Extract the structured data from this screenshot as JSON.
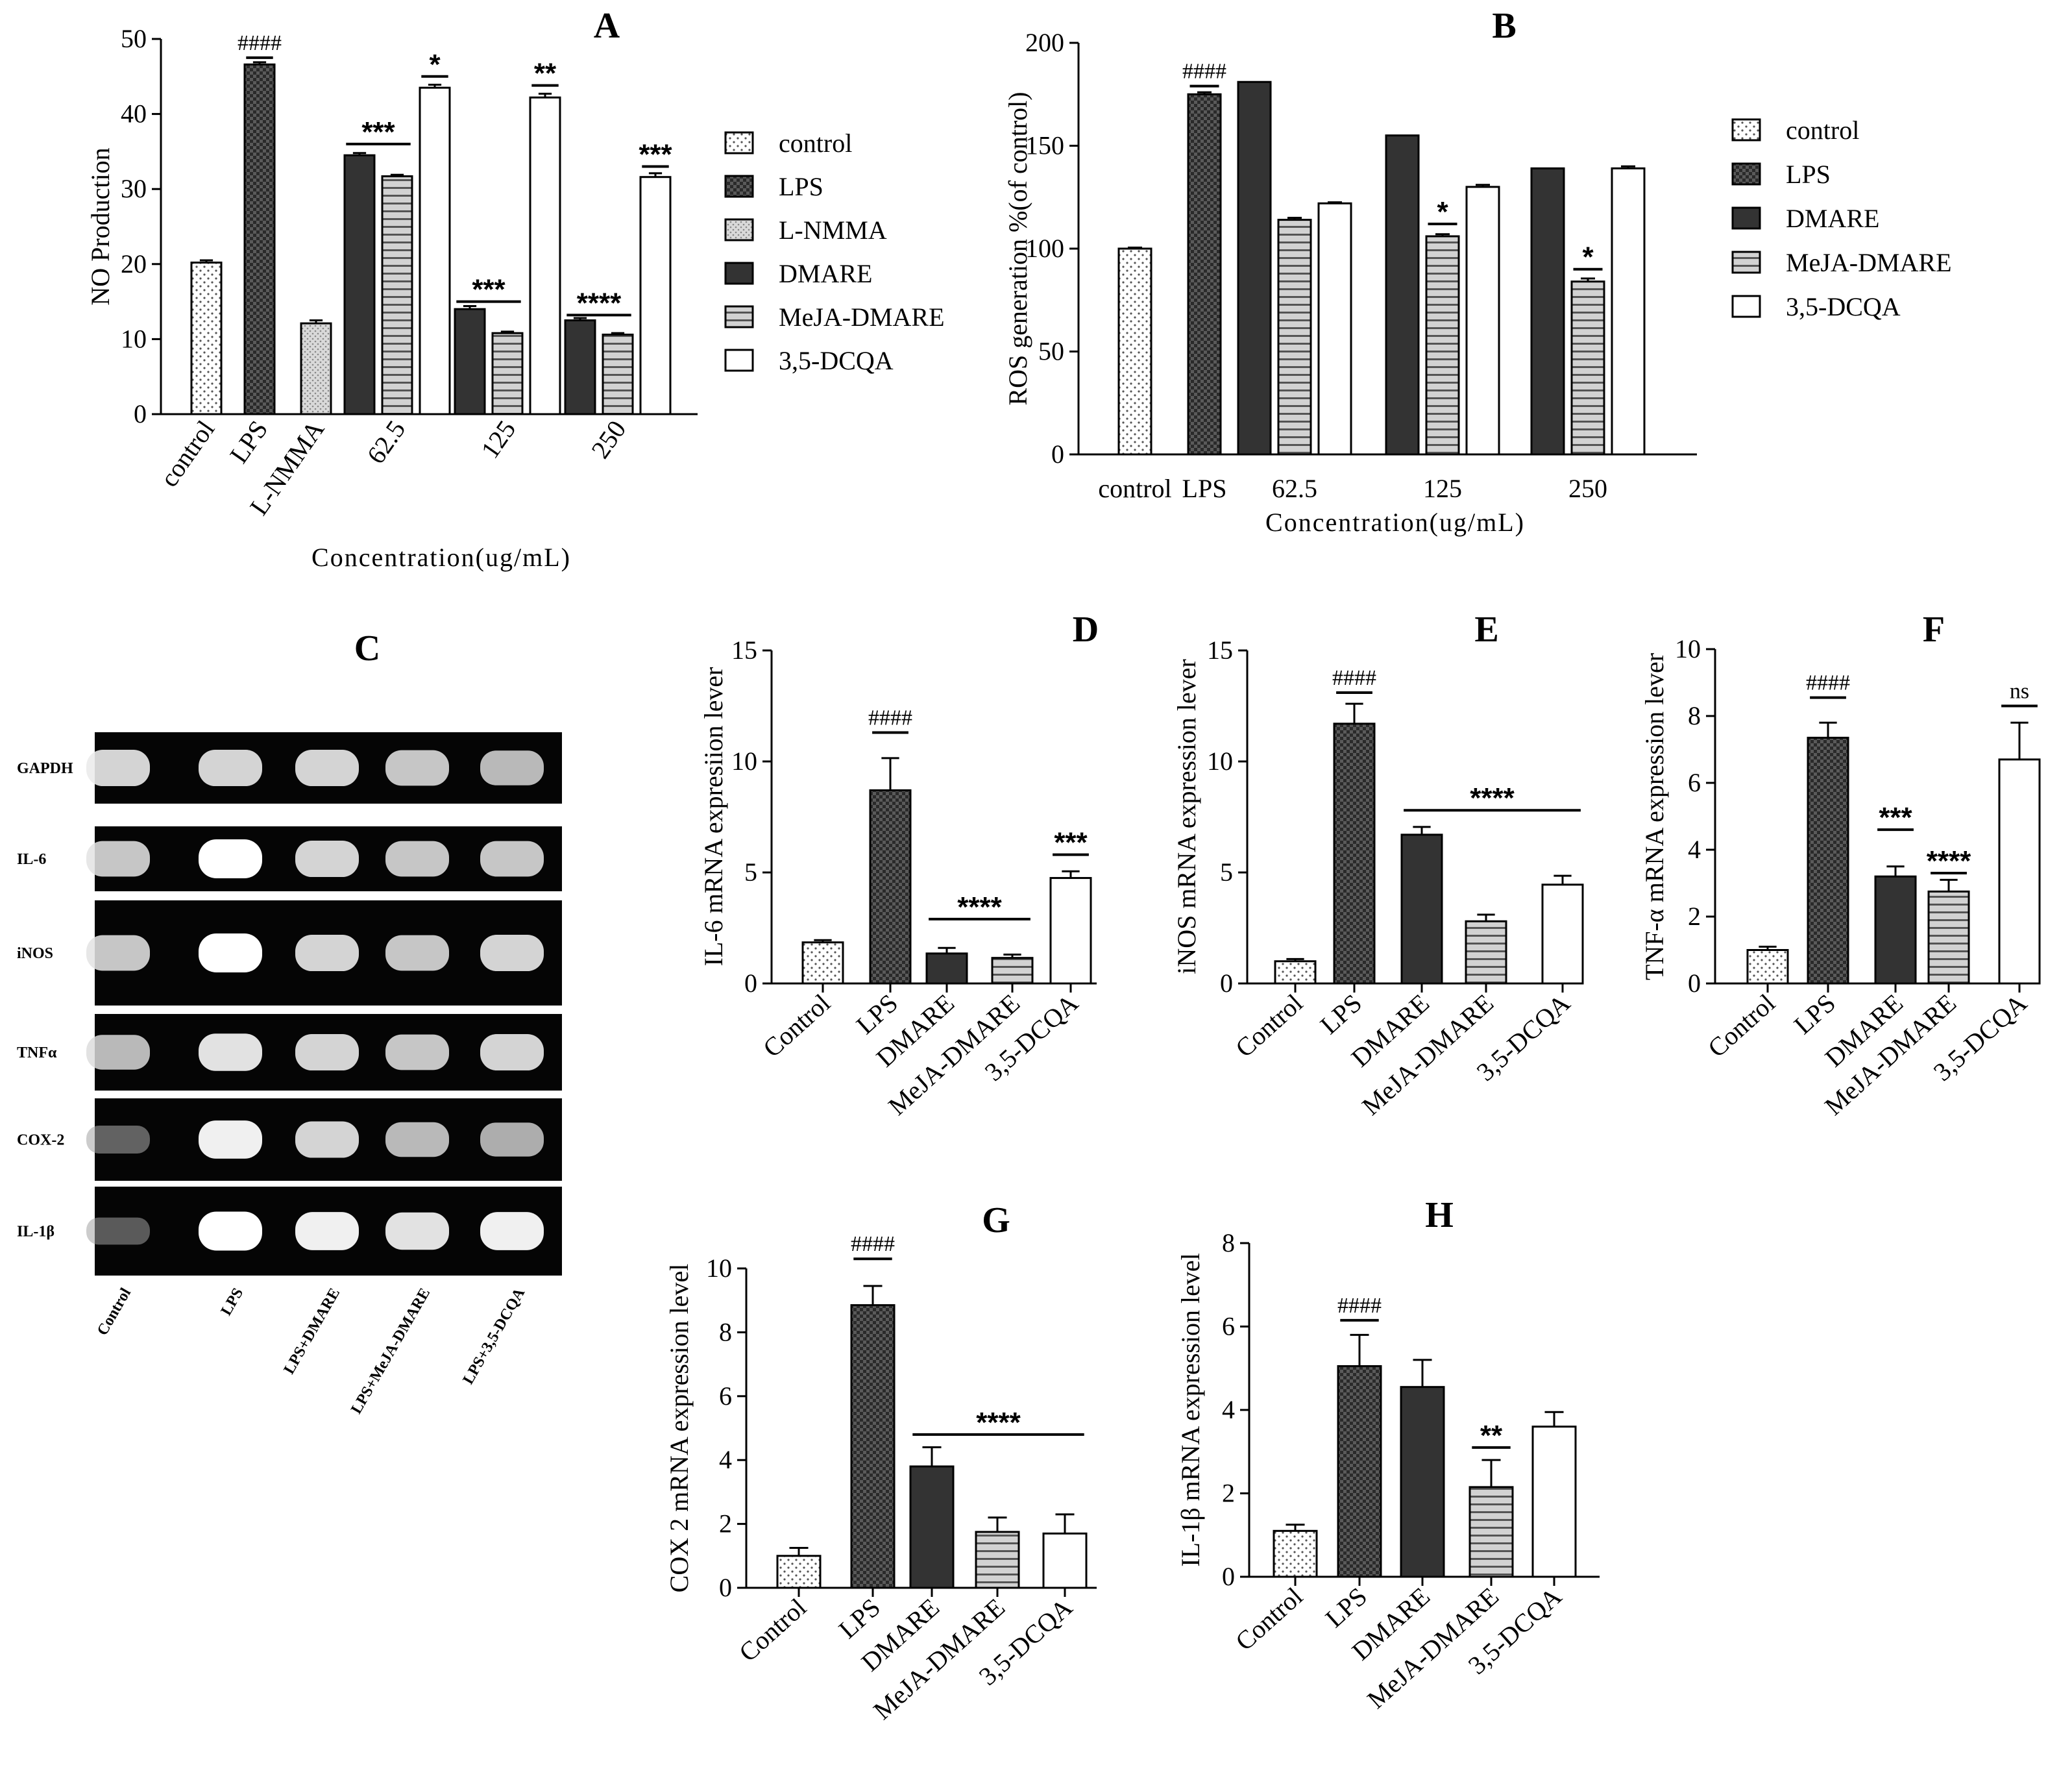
{
  "figure": {
    "gel": {
      "letter": "C",
      "rows": [
        "GAPDH",
        "IL-6",
        "iNOS",
        "TNFα",
        "COX-2",
        "IL-1β"
      ],
      "lanes": [
        "Control",
        "LPS",
        "LPS+DMARE",
        "LPS+MeJA-DMARE",
        "LPS+3,5-DCQA"
      ],
      "band_intensity": [
        [
          0.85,
          0.85,
          0.85,
          0.8,
          0.75
        ],
        [
          0.8,
          1.0,
          0.85,
          0.8,
          0.8
        ],
        [
          0.8,
          1.0,
          0.85,
          0.8,
          0.85
        ],
        [
          0.75,
          0.9,
          0.85,
          0.8,
          0.85
        ],
        [
          0.35,
          0.95,
          0.85,
          0.75,
          0.7
        ],
        [
          0.3,
          1.0,
          0.95,
          0.9,
          0.95
        ]
      ]
    }
  },
  "chart_data": [
    {
      "id": "A",
      "letter": "A",
      "type": "bar",
      "xlabel": "Concentration(ug/mL)",
      "ylabel": "NO Production",
      "ylim": [
        0,
        50
      ],
      "yticks": [
        0,
        10,
        20,
        30,
        40,
        50
      ],
      "groups": [
        "control",
        "LPS",
        "L-NMMA",
        "62.5",
        "125",
        "250"
      ],
      "legend": [
        "control",
        "LPS",
        "L-NMMA",
        "DMARE",
        "MeJA-DMARE",
        "3,5-DCQA"
      ],
      "bars": [
        {
          "group": 0,
          "series": "control",
          "value": 20.2,
          "err": 0.3
        },
        {
          "group": 1,
          "series": "LPS",
          "value": 46.6,
          "err": 0.3
        },
        {
          "group": 2,
          "series": "L-NMMA",
          "value": 12.1,
          "err": 0.4
        },
        {
          "group": 3,
          "series": "DMARE",
          "value": 34.5,
          "err": 0.3
        },
        {
          "group": 3,
          "series": "MeJA-DMARE",
          "value": 31.7,
          "err": 0.2
        },
        {
          "group": 3,
          "series": "3,5-DCQA",
          "value": 43.5,
          "err": 0.4
        },
        {
          "group": 4,
          "series": "DMARE",
          "value": 14.0,
          "err": 0.4
        },
        {
          "group": 4,
          "series": "MeJA-DMARE",
          "value": 10.8,
          "err": 0.2
        },
        {
          "group": 4,
          "series": "3,5-DCQA",
          "value": 42.2,
          "err": 0.5
        },
        {
          "group": 5,
          "series": "DMARE",
          "value": 12.5,
          "err": 0.3
        },
        {
          "group": 5,
          "series": "MeJA-DMARE",
          "value": 10.6,
          "err": 0.2
        },
        {
          "group": 5,
          "series": "3,5-DCQA",
          "value": 31.6,
          "err": 0.5
        }
      ],
      "annotations": [
        {
          "text": "####",
          "bars": [
            1,
            1
          ],
          "level": 47.5,
          "kind": "hash"
        },
        {
          "text": "***",
          "bars": [
            3,
            4
          ],
          "level": 36.0,
          "kind": "star"
        },
        {
          "text": "*",
          "bars": [
            5,
            5
          ],
          "level": 45.0,
          "kind": "star"
        },
        {
          "text": "***",
          "bars": [
            6,
            7
          ],
          "level": 15.0,
          "kind": "star"
        },
        {
          "text": "**",
          "bars": [
            8,
            8
          ],
          "level": 43.8,
          "kind": "star"
        },
        {
          "text": "****",
          "bars": [
            9,
            10
          ],
          "level": 13.2,
          "kind": "star"
        },
        {
          "text": "***",
          "bars": [
            11,
            11
          ],
          "level": 33.0,
          "kind": "star"
        }
      ]
    },
    {
      "id": "B",
      "letter": "B",
      "type": "bar",
      "xlabel": "Concentration(ug/mL)",
      "ylabel": "ROS generation %(of control)",
      "ylim": [
        0,
        200
      ],
      "yticks": [
        0,
        50,
        100,
        150,
        200
      ],
      "groups": [
        "control",
        "LPS",
        "62.5",
        "125",
        "250"
      ],
      "legend": [
        "control",
        "LPS",
        "DMARE",
        "MeJA-DMARE",
        "3,5-DCQA"
      ],
      "bars": [
        {
          "group": 0,
          "series": "control",
          "value": 100,
          "err": 0.5
        },
        {
          "group": 1,
          "series": "LPS",
          "value": 175,
          "err": 1
        },
        {
          "group": 2,
          "series": "DMARE",
          "value": 181,
          "err": 0
        },
        {
          "group": 2,
          "series": "MeJA-DMARE",
          "value": 114,
          "err": 1
        },
        {
          "group": 2,
          "series": "3,5-DCQA",
          "value": 122,
          "err": 0.5
        },
        {
          "group": 3,
          "series": "DMARE",
          "value": 155,
          "err": 0
        },
        {
          "group": 3,
          "series": "MeJA-DMARE",
          "value": 106,
          "err": 1
        },
        {
          "group": 3,
          "series": "3,5-DCQA",
          "value": 130,
          "err": 1
        },
        {
          "group": 4,
          "series": "DMARE",
          "value": 139,
          "err": 0
        },
        {
          "group": 4,
          "series": "MeJA-DMARE",
          "value": 84,
          "err": 1.5
        },
        {
          "group": 4,
          "series": "3,5-DCQA",
          "value": 139,
          "err": 1
        }
      ],
      "annotations": [
        {
          "text": "####",
          "bars": [
            1,
            1
          ],
          "level": 179,
          "kind": "hash"
        },
        {
          "text": "*",
          "bars": [
            6,
            6
          ],
          "level": 112,
          "kind": "star"
        },
        {
          "text": "*",
          "bars": [
            9,
            9
          ],
          "level": 90,
          "kind": "star"
        }
      ]
    },
    {
      "id": "D",
      "letter": "D",
      "type": "bar",
      "ylabel": "IL-6 mRNA expresiion lever",
      "ylim": [
        0,
        15
      ],
      "yticks": [
        0,
        5,
        10,
        15
      ],
      "categories": [
        "Control",
        "LPS",
        "DMARE",
        "MeJA-DMARE",
        "3,5-DCQA"
      ],
      "values": [
        1.85,
        8.7,
        1.35,
        1.15,
        4.75
      ],
      "errors": [
        0.1,
        1.45,
        0.25,
        0.15,
        0.3
      ],
      "annotations": [
        {
          "text": "####",
          "bars": [
            1,
            1
          ],
          "level": 11.3,
          "kind": "hash"
        },
        {
          "text": "****",
          "bars": [
            2,
            3
          ],
          "level": 2.9,
          "kind": "star"
        },
        {
          "text": "***",
          "bars": [
            4,
            4
          ],
          "level": 5.8,
          "kind": "star"
        }
      ]
    },
    {
      "id": "E",
      "letter": "E",
      "type": "bar",
      "ylabel": "iNOS mRNA expression lever",
      "ylim": [
        0,
        15
      ],
      "yticks": [
        0,
        5,
        10,
        15
      ],
      "categories": [
        "Control",
        "LPS",
        "DMARE",
        "MeJA-DMARE",
        "3,5-DCQA"
      ],
      "values": [
        1.0,
        11.7,
        6.7,
        2.8,
        4.45
      ],
      "errors": [
        0.1,
        0.9,
        0.35,
        0.3,
        0.4
      ],
      "annotations": [
        {
          "text": "####",
          "bars": [
            1,
            1
          ],
          "level": 13.1,
          "kind": "hash"
        },
        {
          "text": "****",
          "bars": [
            2,
            4
          ],
          "level": 7.8,
          "kind": "star"
        }
      ]
    },
    {
      "id": "F",
      "letter": "F",
      "type": "bar",
      "ylabel": "TNF-α mRNA expression lever",
      "ylim": [
        0,
        10
      ],
      "yticks": [
        0,
        2,
        4,
        6,
        8,
        10
      ],
      "categories": [
        "Control",
        "LPS",
        "DMARE",
        "MeJA-DMARE",
        "3,5-DCQA"
      ],
      "values": [
        1.0,
        7.35,
        3.2,
        2.75,
        6.7
      ],
      "errors": [
        0.1,
        0.45,
        0.3,
        0.35,
        1.1
      ],
      "annotations": [
        {
          "text": "####",
          "bars": [
            1,
            1
          ],
          "level": 8.55,
          "kind": "hash"
        },
        {
          "text": "***",
          "bars": [
            2,
            2
          ],
          "level": 4.6,
          "kind": "star"
        },
        {
          "text": "****",
          "bars": [
            3,
            3
          ],
          "level": 3.3,
          "kind": "star"
        },
        {
          "text": "ns",
          "bars": [
            4,
            4
          ],
          "level": 8.3,
          "kind": "hash"
        }
      ]
    },
    {
      "id": "G",
      "letter": "G",
      "type": "bar",
      "ylabel": "COX 2 mRNA expression level",
      "ylim": [
        0,
        10
      ],
      "yticks": [
        0,
        2,
        4,
        6,
        8,
        10
      ],
      "categories": [
        "Control",
        "LPS",
        "DMARE",
        "MeJA-DMARE",
        "3,5-DCQA"
      ],
      "values": [
        1.0,
        8.85,
        3.8,
        1.75,
        1.7
      ],
      "errors": [
        0.25,
        0.6,
        0.6,
        0.45,
        0.6
      ],
      "annotations": [
        {
          "text": "####",
          "bars": [
            1,
            1
          ],
          "level": 10.3,
          "kind": "hash"
        },
        {
          "text": "****",
          "bars": [
            2,
            4
          ],
          "level": 4.8,
          "kind": "star"
        }
      ]
    },
    {
      "id": "H",
      "letter": "H",
      "type": "bar",
      "ylabel": "IL-1β mRNA expression level",
      "ylim": [
        0,
        8
      ],
      "yticks": [
        0,
        2,
        4,
        6,
        8
      ],
      "categories": [
        "Control",
        "LPS",
        "DMARE",
        "MeJA-DMARE",
        "3,5-DCQA"
      ],
      "values": [
        1.1,
        5.05,
        4.55,
        2.15,
        3.6
      ],
      "errors": [
        0.15,
        0.75,
        0.65,
        0.65,
        0.35
      ],
      "annotations": [
        {
          "text": "####",
          "bars": [
            1,
            1
          ],
          "level": 6.15,
          "kind": "hash"
        },
        {
          "text": "**",
          "bars": [
            3,
            3
          ],
          "level": 3.1,
          "kind": "star"
        }
      ]
    }
  ]
}
